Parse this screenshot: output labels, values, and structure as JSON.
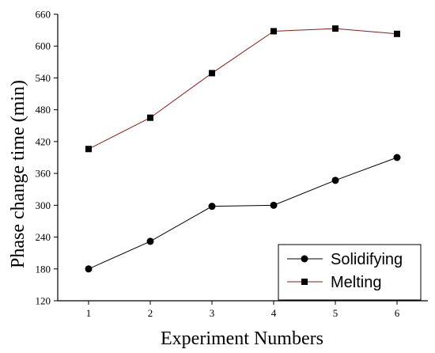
{
  "chart_data": {
    "type": "line",
    "x": [
      1,
      2,
      3,
      4,
      5,
      6
    ],
    "xlim": [
      0.5,
      6.5
    ],
    "ylim": [
      120,
      660
    ],
    "xticks": [
      1,
      2,
      3,
      4,
      5,
      6
    ],
    "yticks": [
      120,
      180,
      240,
      300,
      360,
      420,
      480,
      540,
      600,
      660
    ],
    "xlabel": "Experiment Numbers",
    "ylabel": "Phase change time (min)",
    "grid": false,
    "legend_position": "bottom-right",
    "series": [
      {
        "name": "Solidifying",
        "marker": "circle",
        "line_color": "#000000",
        "marker_color": "#000000",
        "values": [
          180,
          232,
          298,
          300,
          347,
          390
        ]
      },
      {
        "name": "Melting",
        "marker": "square",
        "line_color": "#8b1a1a",
        "marker_color": "#000000",
        "values": [
          406,
          465,
          549,
          628,
          633,
          623
        ]
      }
    ]
  }
}
